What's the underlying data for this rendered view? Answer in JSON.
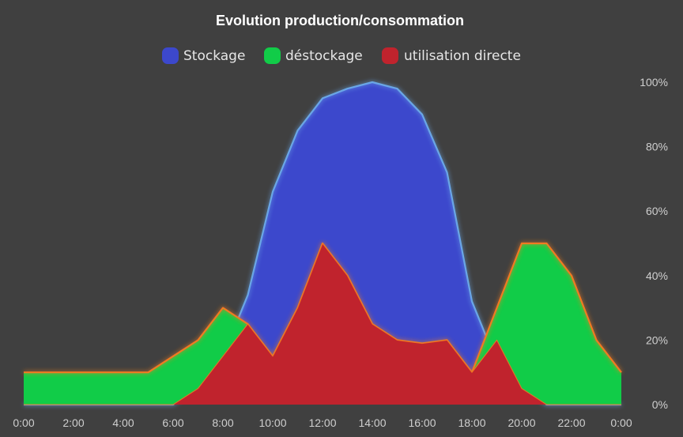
{
  "chart_data": {
    "type": "area",
    "title": "Evolution production/consommation",
    "x": [
      "0:00",
      "1:00",
      "2:00",
      "3:00",
      "4:00",
      "5:00",
      "6:00",
      "7:00",
      "8:00",
      "9:00",
      "10:00",
      "11:00",
      "12:00",
      "13:00",
      "14:00",
      "15:00",
      "16:00",
      "17:00",
      "18:00",
      "19:00",
      "20:00",
      "21:00",
      "22:00",
      "23:00",
      "0:00"
    ],
    "x_tick_labels": [
      "0:00",
      "2:00",
      "4:00",
      "6:00",
      "8:00",
      "10:00",
      "12:00",
      "14:00",
      "16:00",
      "18:00",
      "20:00",
      "22:00",
      "0:00"
    ],
    "y_tick_labels": [
      "0%",
      "20%",
      "40%",
      "60%",
      "80%",
      "100%"
    ],
    "ylim": [
      0,
      100
    ],
    "y_unit": "%",
    "legend_position": "top",
    "grid": false,
    "series": [
      {
        "name": "Stockage",
        "color": "#3c48cc",
        "line_color": "#6aa6e6",
        "values": [
          0,
          0,
          0,
          0,
          0,
          0,
          0,
          5,
          15,
          34,
          66,
          85,
          95,
          98,
          100,
          98,
          90,
          72,
          32,
          13,
          5,
          0,
          0,
          0,
          0
        ]
      },
      {
        "name": "déstockage",
        "color": "#11cc48",
        "line_color": "#f07a24",
        "values": [
          10,
          10,
          10,
          10,
          10,
          10,
          15,
          20,
          30,
          25,
          15,
          30,
          50,
          40,
          25,
          20,
          19,
          20,
          10,
          30,
          50,
          50,
          40,
          20,
          10
        ]
      },
      {
        "name": "utilisation directe",
        "color": "#c0232d",
        "line_color": "#f07a24",
        "values": [
          0,
          0,
          0,
          0,
          0,
          0,
          0,
          5,
          15,
          25,
          15,
          30,
          50,
          40,
          25,
          20,
          19,
          20,
          10,
          20,
          5,
          0,
          0,
          0,
          0
        ]
      }
    ]
  },
  "colors": {
    "background": "#404040",
    "glow": "#5a8fd8"
  }
}
